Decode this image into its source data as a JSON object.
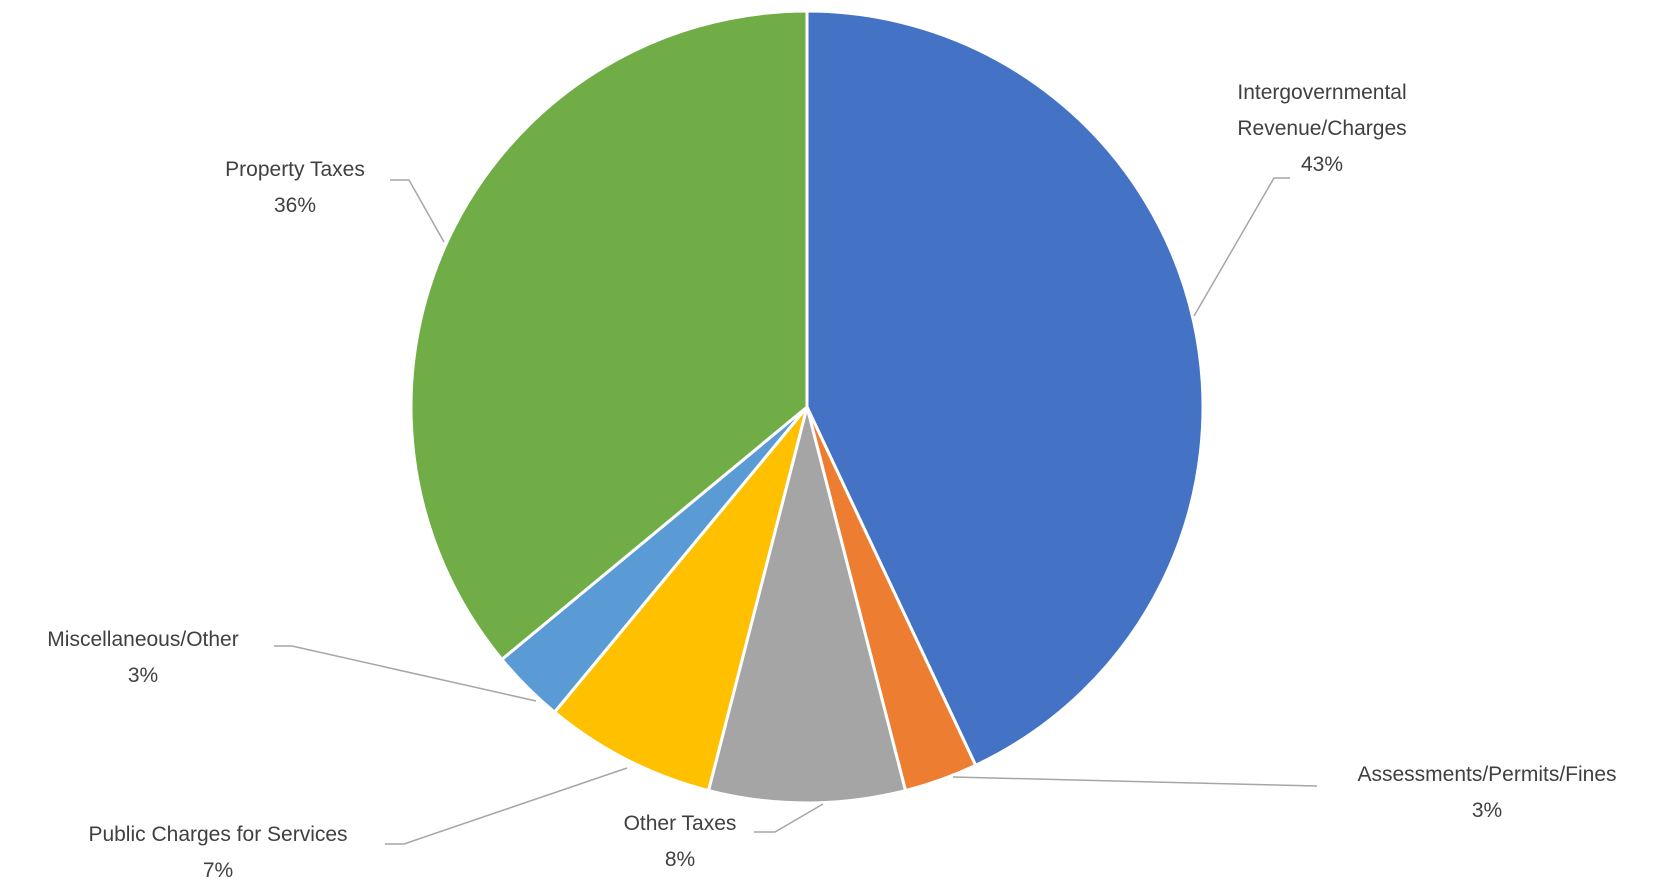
{
  "chart_data": {
    "type": "pie",
    "categories": [
      "Intergovernmental Revenue/Charges",
      "Assessments/Permits/Fines",
      "Other Taxes",
      "Public Charges for Services",
      "Miscellaneous/Other",
      "Property Taxes"
    ],
    "values": [
      43,
      3,
      8,
      7,
      3,
      36
    ],
    "value_labels": [
      "43%",
      "3%",
      "8%",
      "7%",
      "3%",
      "36%"
    ],
    "colors": [
      "#4472c4",
      "#ed7d31",
      "#a5a5a5",
      "#ffc000",
      "#5b9bd5",
      "#70ad47"
    ]
  }
}
